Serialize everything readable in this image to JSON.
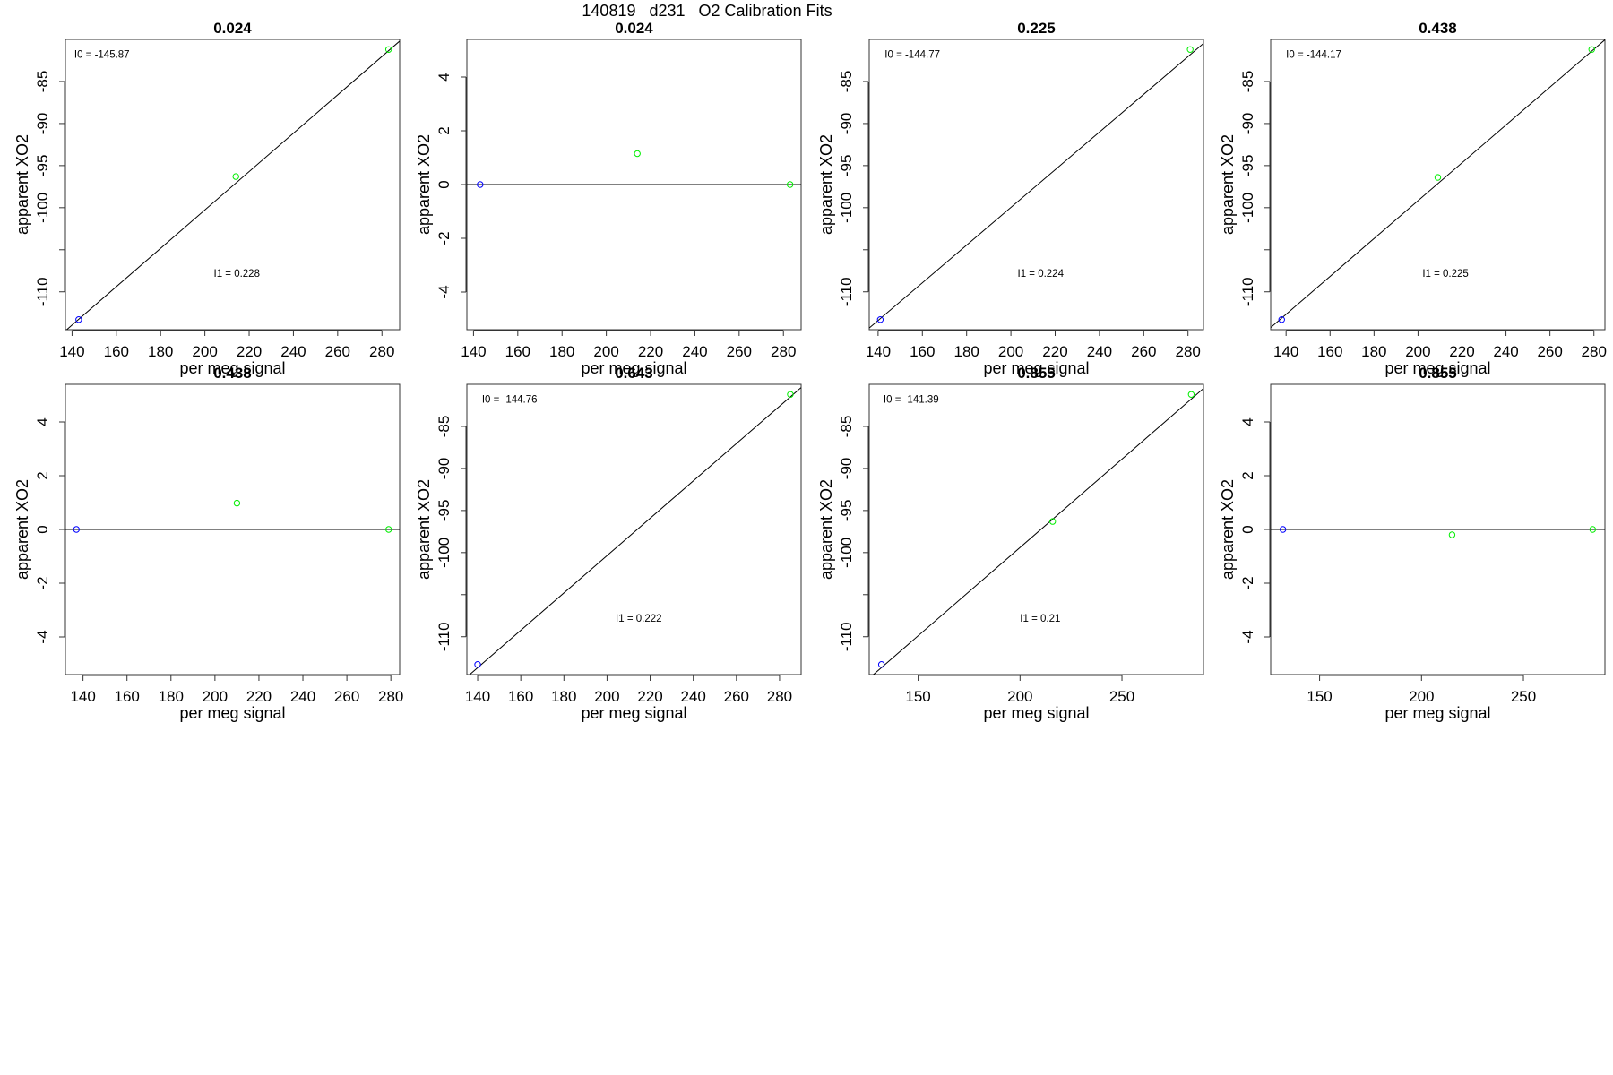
{
  "figure_title": "140819   d231   O2 Calibration Fits",
  "chart_data": [
    {
      "type": "scatter",
      "title": "0.024",
      "xlabel": "per meg signal",
      "ylabel": "apparent XO2",
      "xlim": [
        137,
        288
      ],
      "ylim": [
        -114.5,
        -80
      ],
      "xticks": [
        140,
        160,
        180,
        200,
        220,
        240,
        260,
        280
      ],
      "yticks": [
        -110,
        -100,
        -95,
        -90,
        -85
      ],
      "yticks_unlabeled": [
        -105
      ],
      "points": [
        {
          "x": 143,
          "y": -113.3,
          "color": "#0000ff"
        },
        {
          "x": 214,
          "y": -96.3,
          "color": "#00ee00"
        },
        {
          "x": 283,
          "y": -81.2,
          "color": "#00ee00"
        }
      ],
      "line": {
        "intercept": -145.87,
        "slope": 0.228
      },
      "annotations": [
        {
          "text": "I0 =  -145.87",
          "x": 141,
          "y": -82.2
        },
        {
          "text": "I1 =  0.228",
          "x": 204,
          "y": -108.2
        }
      ]
    },
    {
      "type": "scatter",
      "title": "0.024",
      "xlabel": "per meg signal",
      "ylabel": "apparent XO2",
      "xlim": [
        137,
        288
      ],
      "ylim": [
        -5.4,
        5.4
      ],
      "xticks": [
        140,
        160,
        180,
        200,
        220,
        240,
        260,
        280
      ],
      "yticks": [
        -4,
        -2,
        0,
        2,
        4
      ],
      "points": [
        {
          "x": 143,
          "y": 0,
          "color": "#0000ff"
        },
        {
          "x": 214,
          "y": 1.15,
          "color": "#00ee00"
        },
        {
          "x": 283,
          "y": 0,
          "color": "#00ee00"
        }
      ],
      "line": {
        "intercept": 0,
        "slope": 0
      },
      "annotations": []
    },
    {
      "type": "scatter",
      "title": "0.225",
      "xlabel": "per meg signal",
      "ylabel": "apparent XO2",
      "xlim": [
        136,
        287
      ],
      "ylim": [
        -114.5,
        -80
      ],
      "xticks": [
        140,
        160,
        180,
        200,
        220,
        240,
        260,
        280
      ],
      "yticks": [
        -110,
        -100,
        -95,
        -90,
        -85
      ],
      "yticks_unlabeled": [
        -105
      ],
      "points": [
        {
          "x": 141,
          "y": -113.3,
          "color": "#0000ff"
        },
        {
          "x": 281,
          "y": -81.2,
          "color": "#00ee00"
        }
      ],
      "line": {
        "intercept": -144.77,
        "slope": 0.224
      },
      "annotations": [
        {
          "text": "I0 =  -144.77",
          "x": 143,
          "y": -82.2
        },
        {
          "text": "I1 =  0.224",
          "x": 203,
          "y": -108.2
        }
      ]
    },
    {
      "type": "scatter",
      "title": "0.438",
      "xlabel": "per meg signal",
      "ylabel": "apparent XO2",
      "xlim": [
        133,
        285
      ],
      "ylim": [
        -114.5,
        -80
      ],
      "xticks": [
        140,
        160,
        180,
        200,
        220,
        240,
        260,
        280
      ],
      "yticks": [
        -110,
        -100,
        -95,
        -90,
        -85
      ],
      "yticks_unlabeled": [
        -105
      ],
      "points": [
        {
          "x": 138,
          "y": -113.3,
          "color": "#0000ff"
        },
        {
          "x": 209,
          "y": -96.4,
          "color": "#00ee00"
        },
        {
          "x": 279,
          "y": -81.2,
          "color": "#00ee00"
        }
      ],
      "line": {
        "intercept": -144.17,
        "slope": 0.225
      },
      "annotations": [
        {
          "text": "I0 =  -144.17",
          "x": 140,
          "y": -82.2
        },
        {
          "text": "I1 =  0.225",
          "x": 202,
          "y": -108.2
        }
      ]
    },
    {
      "type": "scatter",
      "title": "0.438",
      "xlabel": "per meg signal",
      "ylabel": "apparent XO2",
      "xlim": [
        132,
        284
      ],
      "ylim": [
        -5.4,
        5.4
      ],
      "xticks": [
        140,
        160,
        180,
        200,
        220,
        240,
        260,
        280
      ],
      "yticks": [
        -4,
        -2,
        0,
        2,
        4
      ],
      "points": [
        {
          "x": 137,
          "y": 0,
          "color": "#0000ff"
        },
        {
          "x": 210,
          "y": 0.98,
          "color": "#00ee00"
        },
        {
          "x": 279,
          "y": 0,
          "color": "#00ee00"
        }
      ],
      "line": {
        "intercept": 0,
        "slope": 0
      },
      "annotations": []
    },
    {
      "type": "scatter",
      "title": "0.643",
      "xlabel": "per meg signal",
      "ylabel": "apparent XO2",
      "xlim": [
        135,
        290
      ],
      "ylim": [
        -114.5,
        -80
      ],
      "xticks": [
        140,
        160,
        180,
        200,
        220,
        240,
        260,
        280
      ],
      "yticks": [
        -110,
        -100,
        -95,
        -90,
        -85
      ],
      "yticks_unlabeled": [
        -105
      ],
      "points": [
        {
          "x": 140,
          "y": -113.3,
          "color": "#0000ff"
        },
        {
          "x": 285,
          "y": -81.2,
          "color": "#00ee00"
        }
      ],
      "line": {
        "intercept": -144.76,
        "slope": 0.222
      },
      "annotations": [
        {
          "text": "I0 =  -144.76",
          "x": 142,
          "y": -82.2
        },
        {
          "text": "I1 =  0.222",
          "x": 204,
          "y": -108.2
        }
      ]
    },
    {
      "type": "scatter",
      "title": "0.855",
      "xlabel": "per meg signal",
      "ylabel": "apparent XO2",
      "xlim": [
        126,
        290
      ],
      "ylim": [
        -114.5,
        -80
      ],
      "xticks": [
        150,
        200,
        250
      ],
      "yticks": [
        -110,
        -100,
        -95,
        -90,
        -85
      ],
      "yticks_unlabeled": [
        -105
      ],
      "points": [
        {
          "x": 132,
          "y": -113.3,
          "color": "#0000ff"
        },
        {
          "x": 216,
          "y": -96.3,
          "color": "#00ee00"
        },
        {
          "x": 284,
          "y": -81.2,
          "color": "#00ee00"
        }
      ],
      "line": {
        "intercept": -141.39,
        "slope": 0.21
      },
      "annotations": [
        {
          "text": "I0 =  -141.39",
          "x": 133,
          "y": -82.2
        },
        {
          "text": "I1 =  0.21",
          "x": 200,
          "y": -108.2
        }
      ]
    },
    {
      "type": "scatter",
      "title": "0.855",
      "xlabel": "per meg signal",
      "ylabel": "apparent XO2",
      "xlim": [
        126,
        290
      ],
      "ylim": [
        -5.4,
        5.4
      ],
      "xticks": [
        150,
        200,
        250
      ],
      "yticks": [
        -4,
        -2,
        0,
        2,
        4
      ],
      "points": [
        {
          "x": 132,
          "y": 0,
          "color": "#0000ff"
        },
        {
          "x": 215,
          "y": -0.2,
          "color": "#00ee00"
        },
        {
          "x": 284,
          "y": 0,
          "color": "#00ee00"
        }
      ],
      "line": {
        "intercept": 0,
        "slope": 0
      },
      "annotations": []
    }
  ]
}
